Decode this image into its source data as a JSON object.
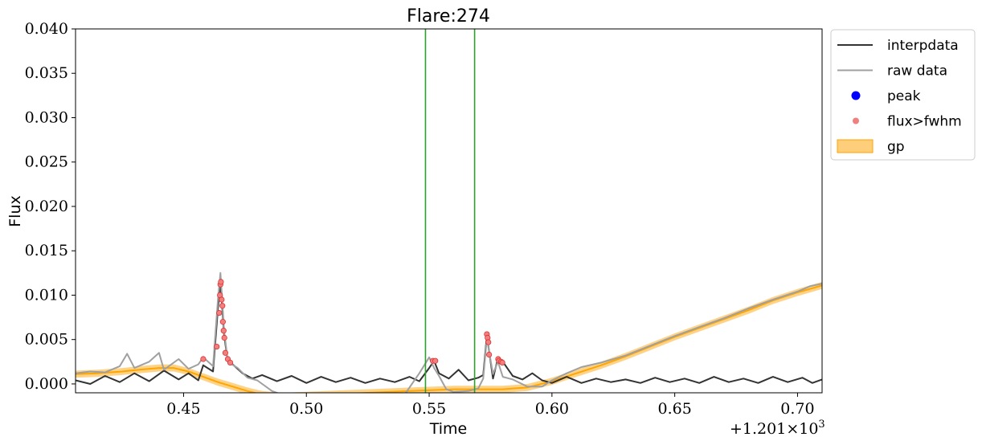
{
  "chart_data": {
    "type": "line",
    "title": "Flare:274",
    "xlabel": "Time",
    "ylabel": "Flux",
    "x_offset_label": "+1.201×10",
    "x_offset_exponent": "3",
    "xlim": [
      0.406,
      0.71
    ],
    "ylim": [
      -0.001,
      0.04
    ],
    "xticks": [
      0.45,
      0.5,
      0.55,
      0.6,
      0.65,
      0.7
    ],
    "xtick_labels": [
      "0.45",
      "0.50",
      "0.55",
      "0.60",
      "0.65",
      "0.70"
    ],
    "yticks": [
      0.0,
      0.005,
      0.01,
      0.015,
      0.02,
      0.025,
      0.03,
      0.035,
      0.04
    ],
    "ytick_labels": [
      "0.000",
      "0.005",
      "0.010",
      "0.015",
      "0.020",
      "0.025",
      "0.030",
      "0.035",
      "0.040"
    ],
    "vlines": [
      0.5485,
      0.5685
    ],
    "vline_color": "#2ca02c",
    "series": [
      {
        "name": "interpdata",
        "color": "#333333",
        "x": [
          0.406,
          0.412,
          0.418,
          0.424,
          0.43,
          0.436,
          0.442,
          0.448,
          0.452,
          0.456,
          0.458,
          0.462,
          0.464,
          0.465,
          0.4665,
          0.468,
          0.47,
          0.474,
          0.478,
          0.482,
          0.488,
          0.494,
          0.5,
          0.506,
          0.512,
          0.518,
          0.524,
          0.53,
          0.536,
          0.542,
          0.546,
          0.55,
          0.552,
          0.554,
          0.558,
          0.562,
          0.566,
          0.57,
          0.572,
          0.5735,
          0.5745,
          0.576,
          0.578,
          0.58,
          0.584,
          0.588,
          0.592,
          0.596,
          0.6,
          0.606,
          0.612,
          0.618,
          0.624,
          0.63,
          0.636,
          0.642,
          0.648,
          0.654,
          0.66,
          0.666,
          0.672,
          0.678,
          0.684,
          0.69,
          0.696,
          0.702,
          0.706,
          0.71
        ],
        "y": [
          0.0004,
          0.0,
          0.0009,
          0.0002,
          0.0012,
          0.0003,
          0.0015,
          0.0005,
          0.0012,
          0.0004,
          0.0021,
          0.0014,
          0.0085,
          0.0115,
          0.0055,
          0.0025,
          0.0022,
          0.0012,
          0.0006,
          0.001,
          0.0003,
          0.0009,
          0.0001,
          0.0008,
          0.0002,
          0.0007,
          0.0001,
          0.0006,
          0.0002,
          0.0008,
          0.0003,
          0.0018,
          0.0026,
          0.0012,
          0.0006,
          0.0016,
          0.0004,
          0.0007,
          0.001,
          0.0055,
          0.0035,
          0.0006,
          0.0029,
          0.0025,
          0.0009,
          0.0005,
          0.0012,
          0.0004,
          0.0001,
          0.0008,
          0.0001,
          0.0006,
          0.0002,
          0.0005,
          0.0001,
          0.0007,
          0.0002,
          0.0006,
          0.0001,
          0.0008,
          0.0002,
          0.0006,
          0.0001,
          0.0008,
          0.0002,
          0.0007,
          0.0001,
          0.0005
        ]
      },
      {
        "name": "raw data",
        "color": "#a0a0a0",
        "x": [
          0.406,
          0.412,
          0.418,
          0.424,
          0.427,
          0.43,
          0.436,
          0.44,
          0.442,
          0.448,
          0.452,
          0.456,
          0.458,
          0.462,
          0.464,
          0.465,
          0.4665,
          0.468,
          0.472,
          0.476,
          0.48,
          0.486,
          0.49,
          0.5,
          0.52,
          0.54,
          0.546,
          0.55,
          0.552,
          0.554,
          0.557,
          0.56,
          0.566,
          0.57,
          0.572,
          0.5735,
          0.5745,
          0.576,
          0.578,
          0.58,
          0.584,
          0.59,
          0.596,
          0.6,
          0.606,
          0.612,
          0.62,
          0.63,
          0.64,
          0.65,
          0.66,
          0.67,
          0.68,
          0.69,
          0.7,
          0.705,
          0.71
        ],
        "y": [
          0.0012,
          0.0014,
          0.0013,
          0.002,
          0.0034,
          0.0018,
          0.0025,
          0.0035,
          0.0016,
          0.0028,
          0.0017,
          0.0022,
          0.003,
          0.002,
          0.0095,
          0.0125,
          0.006,
          0.0025,
          0.0018,
          0.0007,
          0.0004,
          -0.0008,
          -0.0012,
          -0.0012,
          -0.0012,
          -0.0012,
          0.0012,
          0.003,
          0.0018,
          0.0009,
          -0.0006,
          -0.0009,
          -0.0008,
          -0.0005,
          0.0006,
          0.0052,
          0.0035,
          0.0011,
          0.0025,
          0.0008,
          0.0005,
          -0.0003,
          -0.0003,
          0.0004,
          0.0012,
          0.0019,
          0.0024,
          0.0032,
          0.0043,
          0.0054,
          0.0064,
          0.0074,
          0.0085,
          0.0095,
          0.0104,
          0.011,
          0.0113
        ]
      }
    ],
    "peak": {
      "name": "peak",
      "color": "#0000ff",
      "x": [],
      "y": []
    },
    "flux_fwhm": {
      "name": "flux>fwhm",
      "color": "#f08080",
      "edge_color": "#e03030",
      "x": [
        0.458,
        0.4635,
        0.4645,
        0.4648,
        0.465,
        0.4652,
        0.4655,
        0.4658,
        0.466,
        0.4663,
        0.4666,
        0.467,
        0.468,
        0.469,
        0.5515,
        0.5525,
        0.5735,
        0.5738,
        0.5741,
        0.5744,
        0.5781,
        0.5785,
        0.5793,
        0.5798
      ],
      "y": [
        0.0028,
        0.0042,
        0.008,
        0.01,
        0.0112,
        0.0115,
        0.0095,
        0.0088,
        0.007,
        0.006,
        0.0052,
        0.0035,
        0.0028,
        0.0024,
        0.0026,
        0.0026,
        0.0056,
        0.0052,
        0.0047,
        0.0033,
        0.0028,
        0.0026,
        0.0025,
        0.0024
      ]
    },
    "gp": {
      "name": "gp",
      "color": "#ffa500",
      "fill_color": "#ffce7a",
      "x": [
        0.406,
        0.415,
        0.425,
        0.432,
        0.44,
        0.446,
        0.452,
        0.458,
        0.464,
        0.47,
        0.476,
        0.482,
        0.49,
        0.56,
        0.58,
        0.59,
        0.6,
        0.61,
        0.62,
        0.63,
        0.64,
        0.65,
        0.66,
        0.67,
        0.68,
        0.69,
        0.7,
        0.71
      ],
      "y": [
        0.0011,
        0.0012,
        0.0014,
        0.0016,
        0.0018,
        0.0018,
        0.0014,
        0.0008,
        0.0002,
        -0.0003,
        -0.0008,
        -0.0012,
        -0.0014,
        -0.0006,
        -0.0006,
        -0.0004,
        0.0003,
        0.0012,
        0.0021,
        0.0031,
        0.0042,
        0.0053,
        0.0063,
        0.0073,
        0.0083,
        0.0094,
        0.0103,
        0.0111
      ],
      "band": 0.0004
    },
    "legend": {
      "position": "outside-right-top",
      "entries": [
        {
          "label": "interpdata",
          "kind": "line",
          "color": "#333333"
        },
        {
          "label": "raw data",
          "kind": "line",
          "color": "#a0a0a0"
        },
        {
          "label": "peak",
          "kind": "dot",
          "color": "#0000ff"
        },
        {
          "label": "flux>fwhm",
          "kind": "dot",
          "color": "#f08080"
        },
        {
          "label": "gp",
          "kind": "patch",
          "color": "#ffce7a"
        }
      ]
    }
  }
}
